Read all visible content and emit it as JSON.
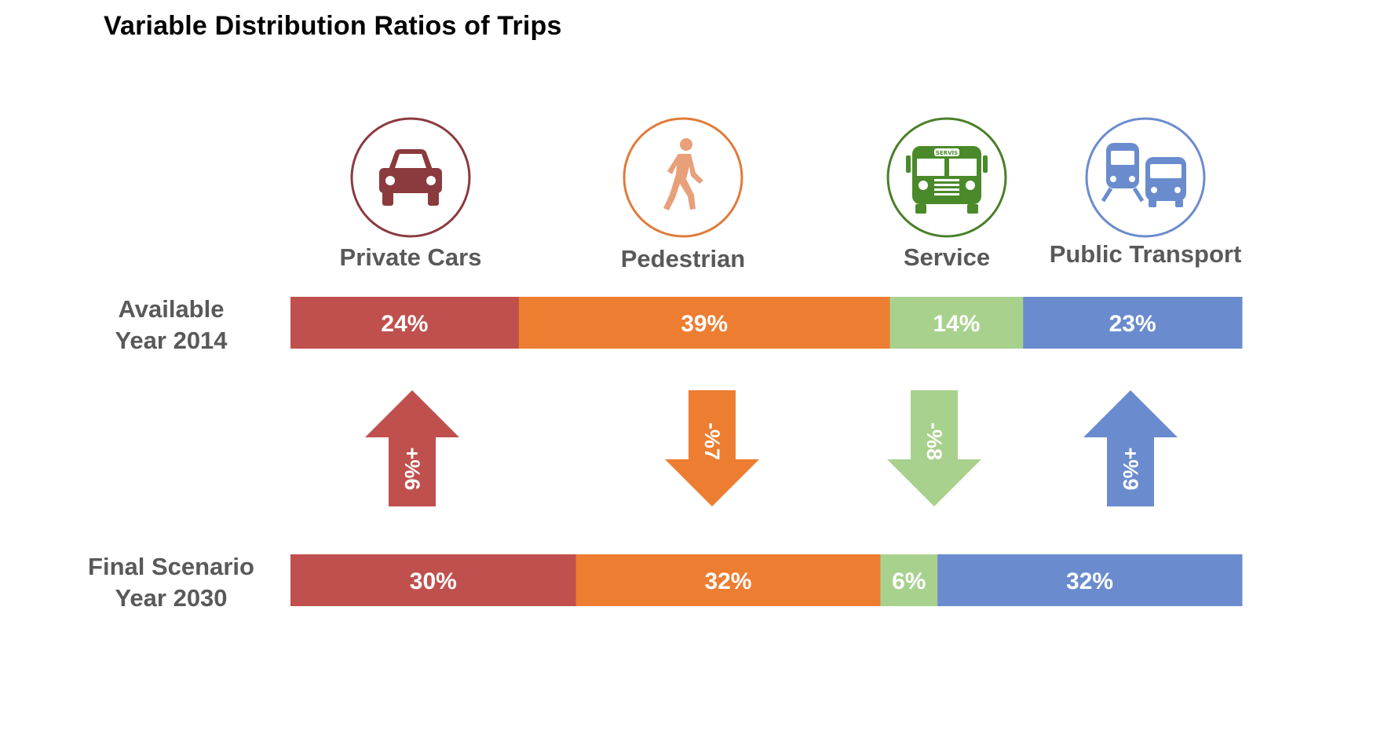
{
  "chart_data": {
    "type": "bar",
    "orientation": "horizontal-stacked-100",
    "title": "Variable Distribution Ratios of Trips",
    "categories": [
      "Private Cars",
      "Pedestrian",
      "Service",
      "Public Transport"
    ],
    "icons": [
      "car-icon",
      "pedestrian-icon",
      "service-bus-icon",
      "public-transport-icon"
    ],
    "icon_badge_text": "SERVİS",
    "colors": {
      "bar": [
        "#c0504d",
        "#ed7d31",
        "#a9d18e",
        "#6a8cce"
      ],
      "icon": [
        "#8b3a3e",
        "#e8a07a",
        "#4a8a2a",
        "#6a8cce"
      ],
      "ring": [
        "#8b3a3e",
        "#e07b39",
        "#4a7f2a",
        "#6a8cce"
      ]
    },
    "rows": [
      {
        "label_line1": "Available",
        "label_line2": "Year 2014",
        "values": [
          24,
          39,
          14,
          23
        ],
        "value_labels": [
          "24%",
          "39%",
          "14%",
          "23%"
        ]
      },
      {
        "label_line1": "Final Scenario",
        "label_line2": "Year 2030",
        "values": [
          30,
          32,
          6,
          32
        ],
        "value_labels": [
          "30%",
          "32%",
          "6%",
          "32%"
        ]
      }
    ],
    "changes": [
      {
        "direction": "up",
        "label": "+%6"
      },
      {
        "direction": "down",
        "label": "-%7"
      },
      {
        "direction": "down",
        "label": "-%8"
      },
      {
        "direction": "up",
        "label": "+%9"
      }
    ]
  }
}
